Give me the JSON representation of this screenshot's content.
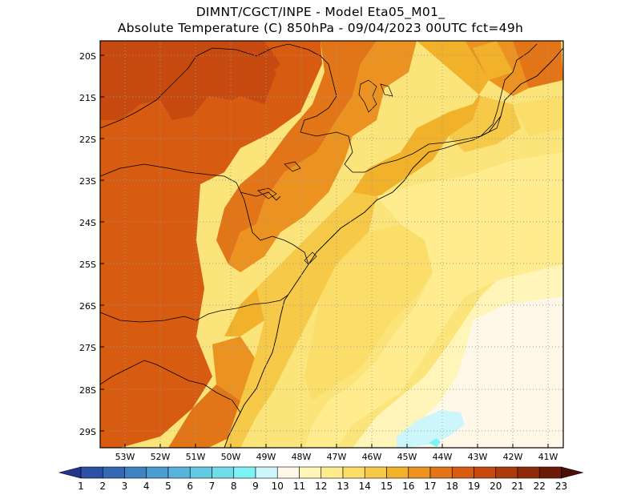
{
  "header": {
    "line1": "DIMNT/CGCT/INPE -  Model Eta05_M01_",
    "line2": "Absolute Temperature (C) 850hPa -  09/04/2023 00UTC fct=49h"
  },
  "map": {
    "lat_labels": [
      "20S",
      "21S",
      "22S",
      "23S",
      "24S",
      "25S",
      "26S",
      "27S",
      "28S",
      "29S"
    ],
    "lon_labels": [
      "53W",
      "52W",
      "51W",
      "50W",
      "49W",
      "48W",
      "47W",
      "46W",
      "45W",
      "44W",
      "43W",
      "42W",
      "41W"
    ],
    "grid": "dotted"
  },
  "colorbar": {
    "values": [
      "1",
      "2",
      "3",
      "4",
      "5",
      "6",
      "7",
      "8",
      "9",
      "10",
      "11",
      "12",
      "13",
      "14",
      "15",
      "16",
      "17",
      "18",
      "19",
      "20",
      "21",
      "22",
      "23"
    ],
    "colors": [
      "#23358f",
      "#2b50a4",
      "#3568b4",
      "#3f83c2",
      "#4b9ccf",
      "#58b4da",
      "#63c8e2",
      "#6fdcea",
      "#7ef3f6",
      "#cdf6fb",
      "#fff8e8",
      "#fff5b8",
      "#ffec8e",
      "#fbdd6a",
      "#f7c948",
      "#f2b12a",
      "#eb9220",
      "#e27518",
      "#d85b12",
      "#c64a10",
      "#ad3a0d",
      "#8e2a0a",
      "#6b1a08",
      "#4a0e06"
    ]
  }
}
